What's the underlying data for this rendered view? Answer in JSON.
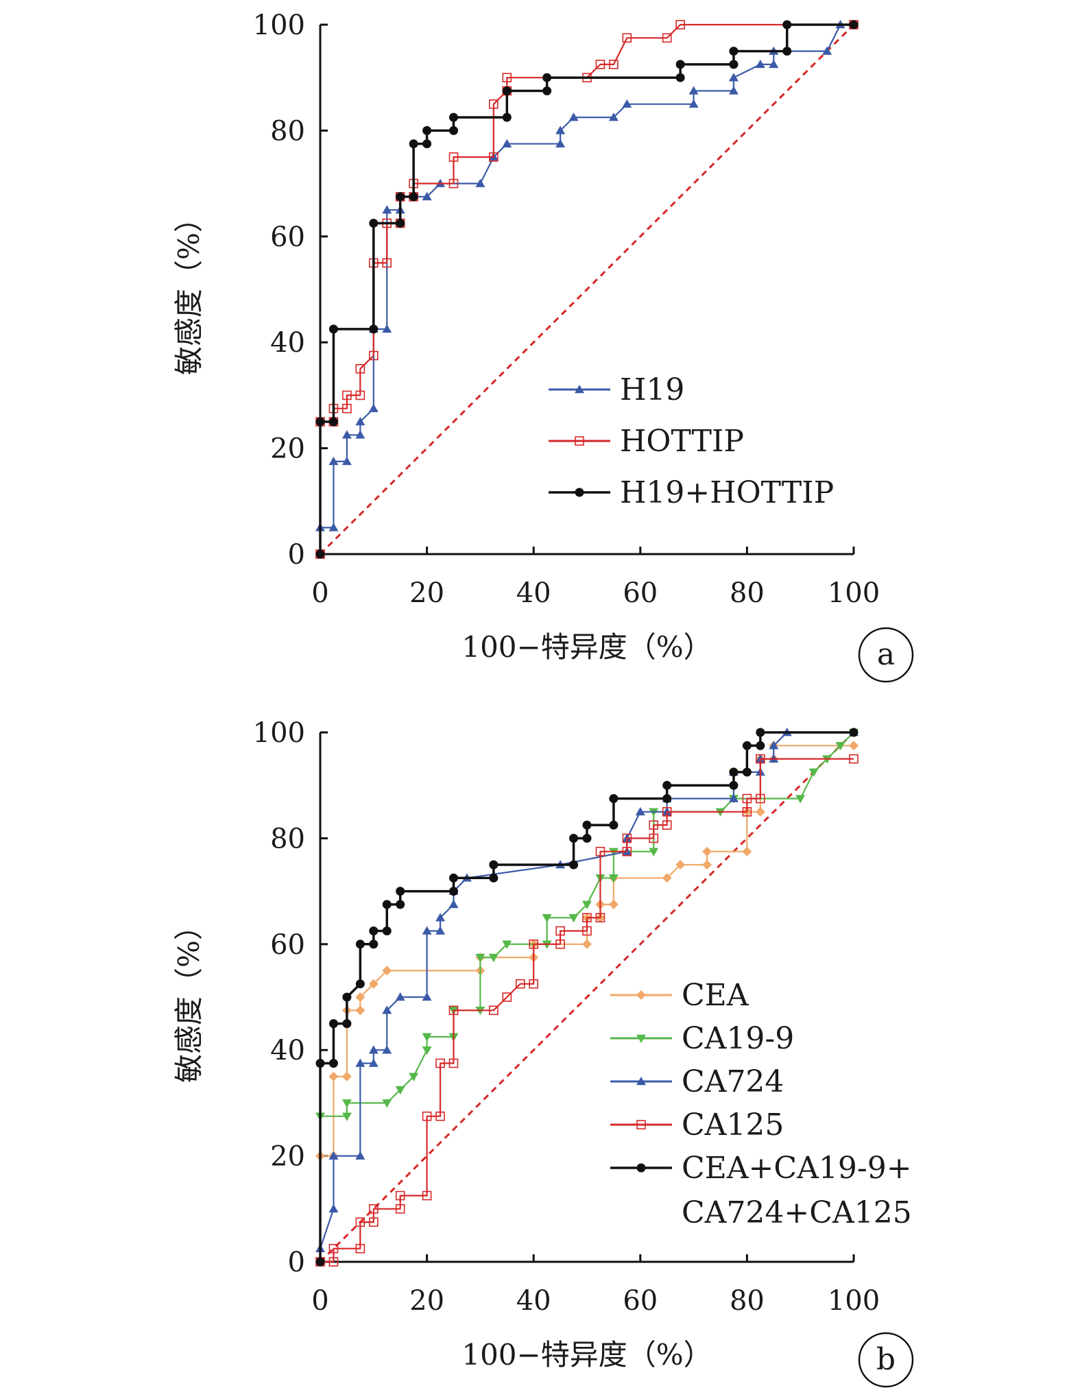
{
  "chart_data": [
    {
      "type": "line",
      "panel_label": "a",
      "xlabel": "100−特异度（%）",
      "ylabel": "敏感度（%）",
      "xlim": [
        0,
        100
      ],
      "ylim": [
        0,
        100
      ],
      "xticks": [
        "0",
        "20",
        "40",
        "60",
        "80",
        "100"
      ],
      "yticks": [
        "0",
        "20",
        "40",
        "60",
        "80",
        "100"
      ],
      "grid": false,
      "legend_position": "lower-right",
      "reference_line": {
        "from": [
          0,
          0
        ],
        "to": [
          100,
          100
        ],
        "color": "#d62728",
        "style": "dashed"
      },
      "series": [
        {
          "name": "H19",
          "color": "#3b5aa8",
          "marker": "triangle",
          "points": [
            [
              0,
              0
            ],
            [
              0,
              5
            ],
            [
              2.5,
              5
            ],
            [
              2.5,
              17.5
            ],
            [
              5,
              17.5
            ],
            [
              5,
              22.5
            ],
            [
              7.5,
              22.5
            ],
            [
              7.5,
              25
            ],
            [
              10,
              27.5
            ],
            [
              10,
              42.5
            ],
            [
              12.5,
              42.5
            ],
            [
              12.5,
              65
            ],
            [
              15,
              65
            ],
            [
              15,
              67.5
            ],
            [
              20,
              67.5
            ],
            [
              22.5,
              70
            ],
            [
              30,
              70
            ],
            [
              32.5,
              75
            ],
            [
              35,
              77.5
            ],
            [
              45,
              77.5
            ],
            [
              45,
              80
            ],
            [
              47.5,
              82.5
            ],
            [
              55,
              82.5
            ],
            [
              57.5,
              85
            ],
            [
              70,
              85
            ],
            [
              70,
              87.5
            ],
            [
              77.5,
              87.5
            ],
            [
              77.5,
              90
            ],
            [
              82.5,
              92.5
            ],
            [
              85,
              92.5
            ],
            [
              85,
              95
            ],
            [
              95,
              95
            ],
            [
              97.5,
              100
            ],
            [
              100,
              100
            ]
          ]
        },
        {
          "name": "HOTTIP",
          "color": "#d62728",
          "marker": "square-open",
          "points": [
            [
              0,
              0
            ],
            [
              0,
              25
            ],
            [
              2.5,
              25
            ],
            [
              2.5,
              27.5
            ],
            [
              5,
              27.5
            ],
            [
              5,
              30
            ],
            [
              7.5,
              30
            ],
            [
              7.5,
              35
            ],
            [
              10,
              37.5
            ],
            [
              10,
              55
            ],
            [
              12.5,
              55
            ],
            [
              12.5,
              62.5
            ],
            [
              15,
              62.5
            ],
            [
              15,
              67.5
            ],
            [
              17.5,
              67.5
            ],
            [
              17.5,
              70
            ],
            [
              25,
              70
            ],
            [
              25,
              75
            ],
            [
              32.5,
              75
            ],
            [
              32.5,
              85
            ],
            [
              35,
              87.5
            ],
            [
              35,
              90
            ],
            [
              50,
              90
            ],
            [
              52.5,
              92.5
            ],
            [
              55,
              92.5
            ],
            [
              57.5,
              97.5
            ],
            [
              65,
              97.5
            ],
            [
              67.5,
              100
            ],
            [
              100,
              100
            ]
          ]
        },
        {
          "name": "H19+HOTTIP",
          "color": "#111111",
          "marker": "circle",
          "points": [
            [
              0,
              0
            ],
            [
              0,
              25
            ],
            [
              2.5,
              25
            ],
            [
              2.5,
              42.5
            ],
            [
              10,
              42.5
            ],
            [
              10,
              62.5
            ],
            [
              15,
              62.5
            ],
            [
              15,
              67.5
            ],
            [
              17.5,
              67.5
            ],
            [
              17.5,
              77.5
            ],
            [
              20,
              77.5
            ],
            [
              20,
              80
            ],
            [
              25,
              80
            ],
            [
              25,
              82.5
            ],
            [
              35,
              82.5
            ],
            [
              35,
              87.5
            ],
            [
              42.5,
              87.5
            ],
            [
              42.5,
              90
            ],
            [
              67.5,
              90
            ],
            [
              67.5,
              92.5
            ],
            [
              77.5,
              92.5
            ],
            [
              77.5,
              95
            ],
            [
              87.5,
              95
            ],
            [
              87.5,
              100
            ],
            [
              100,
              100
            ]
          ]
        }
      ]
    },
    {
      "type": "line",
      "panel_label": "b",
      "xlabel": "100−特异度（%）",
      "ylabel": "敏感度（%）",
      "xlim": [
        0,
        100
      ],
      "ylim": [
        0,
        100
      ],
      "xticks": [
        "0",
        "20",
        "40",
        "60",
        "80",
        "100"
      ],
      "yticks": [
        "0",
        "20",
        "40",
        "60",
        "80",
        "100"
      ],
      "grid": false,
      "legend_position": "lower-right",
      "reference_line": {
        "from": [
          0,
          0
        ],
        "to": [
          100,
          100
        ],
        "color": "#d62728",
        "style": "dashed"
      },
      "series": [
        {
          "name": "CEA",
          "color": "#f0a868",
          "marker": "diamond",
          "points": [
            [
              0,
              0
            ],
            [
              0,
              20
            ],
            [
              2.5,
              20
            ],
            [
              2.5,
              35
            ],
            [
              5,
              35
            ],
            [
              5,
              47.5
            ],
            [
              7.5,
              47.5
            ],
            [
              7.5,
              50
            ],
            [
              10,
              52.5
            ],
            [
              12.5,
              55
            ],
            [
              30,
              55
            ],
            [
              30,
              57.5
            ],
            [
              40,
              57.5
            ],
            [
              40,
              60
            ],
            [
              50,
              60
            ],
            [
              50,
              65
            ],
            [
              52.5,
              65
            ],
            [
              52.5,
              67.5
            ],
            [
              55,
              67.5
            ],
            [
              55,
              72.5
            ],
            [
              65,
              72.5
            ],
            [
              67.5,
              75
            ],
            [
              72.5,
              75
            ],
            [
              72.5,
              77.5
            ],
            [
              80,
              77.5
            ],
            [
              80,
              85
            ],
            [
              82.5,
              85
            ],
            [
              82.5,
              95
            ],
            [
              85,
              95
            ],
            [
              85,
              97.5
            ],
            [
              100,
              97.5
            ]
          ]
        },
        {
          "name": "CA19-9",
          "color": "#55b848",
          "marker": "triangle-down",
          "points": [
            [
              0,
              0
            ],
            [
              0,
              27.5
            ],
            [
              5,
              27.5
            ],
            [
              5,
              30
            ],
            [
              12.5,
              30
            ],
            [
              15,
              32.5
            ],
            [
              17.5,
              35
            ],
            [
              20,
              40
            ],
            [
              20,
              42.5
            ],
            [
              25,
              42.5
            ],
            [
              25,
              47.5
            ],
            [
              30,
              47.5
            ],
            [
              30,
              57.5
            ],
            [
              32.5,
              57.5
            ],
            [
              35,
              60
            ],
            [
              42.5,
              60
            ],
            [
              42.5,
              65
            ],
            [
              47.5,
              65
            ],
            [
              50,
              67.5
            ],
            [
              52.5,
              72.5
            ],
            [
              55,
              72.5
            ],
            [
              55,
              77.5
            ],
            [
              62.5,
              77.5
            ],
            [
              62.5,
              85
            ],
            [
              75,
              85
            ],
            [
              77.5,
              87.5
            ],
            [
              90,
              87.5
            ],
            [
              92.5,
              92.5
            ],
            [
              95,
              95
            ],
            [
              97.5,
              97.5
            ],
            [
              100,
              100
            ]
          ]
        },
        {
          "name": "CA724",
          "color": "#3b5aa8",
          "marker": "triangle",
          "points": [
            [
              0,
              0
            ],
            [
              0,
              2.5
            ],
            [
              2.5,
              10
            ],
            [
              2.5,
              20
            ],
            [
              7.5,
              20
            ],
            [
              7.5,
              37.5
            ],
            [
              10,
              37.5
            ],
            [
              10,
              40
            ],
            [
              12.5,
              40
            ],
            [
              12.5,
              47.5
            ],
            [
              15,
              50
            ],
            [
              20,
              50
            ],
            [
              20,
              62.5
            ],
            [
              22.5,
              62.5
            ],
            [
              22.5,
              65
            ],
            [
              25,
              67.5
            ],
            [
              25,
              70
            ],
            [
              27.5,
              72.5
            ],
            [
              45,
              75
            ],
            [
              57.5,
              77.5
            ],
            [
              57.5,
              80
            ],
            [
              60,
              85
            ],
            [
              65,
              85
            ],
            [
              65,
              87.5
            ],
            [
              77.5,
              87.5
            ],
            [
              77.5,
              92.5
            ],
            [
              82.5,
              92.5
            ],
            [
              82.5,
              95
            ],
            [
              85,
              95
            ],
            [
              85,
              97.5
            ],
            [
              87.5,
              100
            ],
            [
              100,
              100
            ]
          ]
        },
        {
          "name": "CA125",
          "color": "#d62728",
          "marker": "square-open",
          "points": [
            [
              0,
              0
            ],
            [
              2.5,
              0
            ],
            [
              2.5,
              2.5
            ],
            [
              7.5,
              2.5
            ],
            [
              7.5,
              7.5
            ],
            [
              10,
              7.5
            ],
            [
              10,
              10
            ],
            [
              15,
              10
            ],
            [
              15,
              12.5
            ],
            [
              20,
              12.5
            ],
            [
              20,
              27.5
            ],
            [
              22.5,
              27.5
            ],
            [
              22.5,
              37.5
            ],
            [
              25,
              37.5
            ],
            [
              25,
              47.5
            ],
            [
              32.5,
              47.5
            ],
            [
              35,
              50
            ],
            [
              37.5,
              52.5
            ],
            [
              40,
              52.5
            ],
            [
              40,
              60
            ],
            [
              45,
              60
            ],
            [
              45,
              62.5
            ],
            [
              50,
              62.5
            ],
            [
              50,
              65
            ],
            [
              52.5,
              65
            ],
            [
              52.5,
              77.5
            ],
            [
              57.5,
              77.5
            ],
            [
              57.5,
              80
            ],
            [
              62.5,
              80
            ],
            [
              62.5,
              82.5
            ],
            [
              65,
              82.5
            ],
            [
              65,
              85
            ],
            [
              80,
              85
            ],
            [
              80,
              87.5
            ],
            [
              82.5,
              87.5
            ],
            [
              82.5,
              95
            ],
            [
              100,
              95
            ]
          ]
        },
        {
          "name": "CEA+CA19-9+CA724+CA125",
          "color": "#111111",
          "marker": "circle",
          "points": [
            [
              0,
              0
            ],
            [
              0,
              37.5
            ],
            [
              2.5,
              37.5
            ],
            [
              2.5,
              45
            ],
            [
              5,
              45
            ],
            [
              5,
              50
            ],
            [
              7.5,
              52.5
            ],
            [
              7.5,
              60
            ],
            [
              10,
              60
            ],
            [
              10,
              62.5
            ],
            [
              12.5,
              62.5
            ],
            [
              12.5,
              67.5
            ],
            [
              15,
              67.5
            ],
            [
              15,
              70
            ],
            [
              25,
              70
            ],
            [
              25,
              72.5
            ],
            [
              32.5,
              72.5
            ],
            [
              32.5,
              75
            ],
            [
              47.5,
              75
            ],
            [
              47.5,
              80
            ],
            [
              50,
              80
            ],
            [
              50,
              82.5
            ],
            [
              55,
              82.5
            ],
            [
              55,
              87.5
            ],
            [
              65,
              87.5
            ],
            [
              65,
              90
            ],
            [
              77.5,
              90
            ],
            [
              77.5,
              92.5
            ],
            [
              80,
              92.5
            ],
            [
              80,
              97.5
            ],
            [
              82.5,
              97.5
            ],
            [
              82.5,
              100
            ],
            [
              100,
              100
            ]
          ]
        }
      ]
    }
  ]
}
